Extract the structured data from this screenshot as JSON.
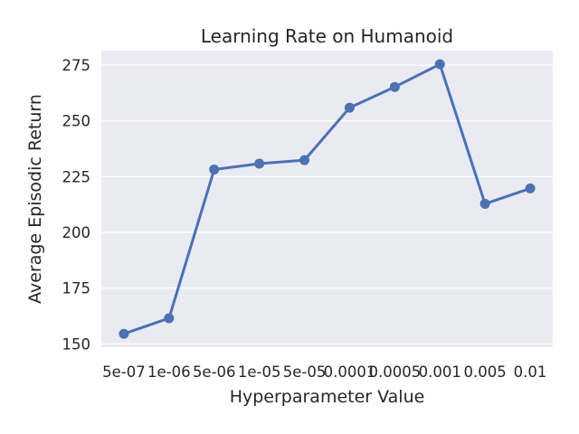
{
  "chart_data": {
    "type": "line",
    "title": "Learning Rate on Humanoid",
    "xlabel": "Hyperparameter Value",
    "ylabel": "Average Episodic Return",
    "categories": [
      "5e-07",
      "1e-06",
      "5e-06",
      "1e-05",
      "5e-05",
      "0.0001",
      "0.0005",
      "0.001",
      "0.005",
      "0.01"
    ],
    "series": [
      {
        "values": [
          154.5,
          161.5,
          228.2,
          230.8,
          232.4,
          255.9,
          265.2,
          275.4,
          212.8,
          219.7
        ]
      }
    ],
    "yticks": [
      150,
      175,
      200,
      225,
      250,
      275
    ],
    "ylim": [
      148.5,
      281.5
    ],
    "grid": true,
    "line_color": "#4c72b0",
    "background_color": "#eaeaf2",
    "grid_color": "#ffffff"
  }
}
